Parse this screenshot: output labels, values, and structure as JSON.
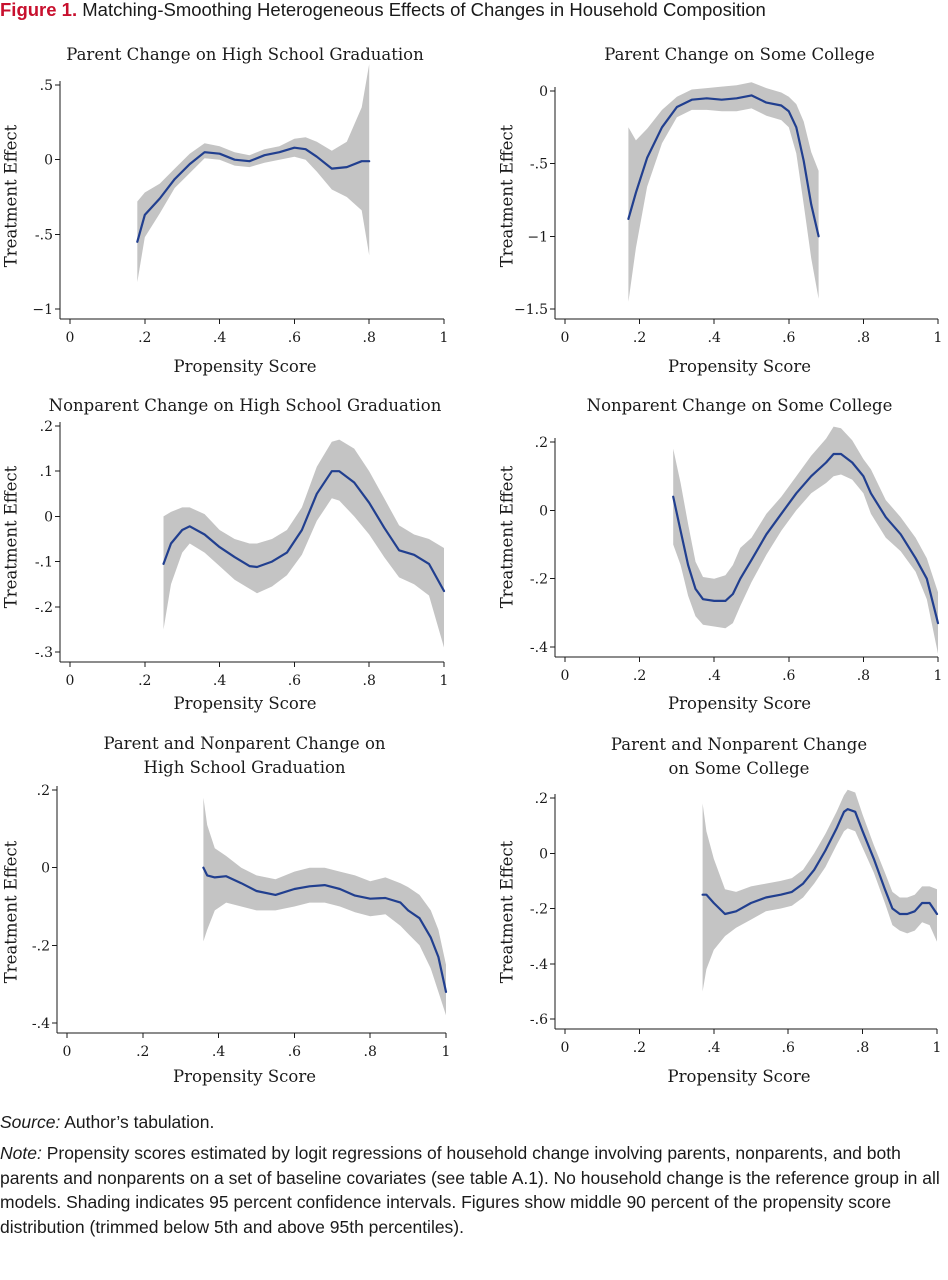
{
  "figure": {
    "label": "Figure 1.",
    "title": "Matching-Smoothing Heterogeneous Effects of Changes in Household Composition"
  },
  "footer": {
    "source_label": "Source:",
    "source_text": "Author’s tabulation.",
    "note_label": "Note:",
    "note_text": "Propensity scores estimated by logit regressions of household change involving parents, nonparents, and both parents and nonparents on a set of baseline covariates (see table A.1). No household change is the reference group in all models. Shading indicates 95 percent confidence intervals. Figures show middle 90 percent of the propensity score distribution (trimmed below 5th and above 95th percentiles)."
  },
  "colors": {
    "line": "#213f8f",
    "band": "#c4c4c4",
    "figure_label": "#c8102e"
  },
  "chart_data": [
    {
      "type": "line",
      "title_lines": [
        "Parent Change on High School Graduation"
      ],
      "xlabel": "Propensity Score",
      "ylabel": "Treatment Effect",
      "xlim": [
        0,
        1
      ],
      "ylim": [
        -1,
        0.5
      ],
      "xticks": [
        0,
        0.2,
        0.4,
        0.6,
        0.8,
        1
      ],
      "xtick_labels": [
        "0",
        ".2",
        ".4",
        ".6",
        ".8",
        "1"
      ],
      "yticks": [
        -1,
        -0.5,
        0,
        0.5
      ],
      "ytick_labels": [
        "−1",
        "-.5",
        "0",
        ".5"
      ],
      "series": [
        {
          "x": [
            0.18,
            0.2,
            0.24,
            0.28,
            0.32,
            0.36,
            0.4,
            0.44,
            0.48,
            0.52,
            0.56,
            0.6,
            0.63,
            0.66,
            0.7,
            0.74,
            0.78,
            0.8
          ],
          "y": [
            -0.55,
            -0.37,
            -0.26,
            -0.13,
            -0.03,
            0.05,
            0.04,
            0.0,
            -0.01,
            0.03,
            0.05,
            0.08,
            0.07,
            0.02,
            -0.06,
            -0.05,
            -0.01,
            -0.01
          ],
          "lower": [
            -0.82,
            -0.52,
            -0.36,
            -0.19,
            -0.09,
            0.01,
            0.0,
            -0.04,
            -0.05,
            -0.02,
            0.0,
            0.02,
            0.0,
            -0.08,
            -0.2,
            -0.25,
            -0.34,
            -0.64
          ],
          "upper": [
            -0.28,
            -0.22,
            -0.16,
            -0.06,
            0.04,
            0.11,
            0.09,
            0.05,
            0.03,
            0.07,
            0.09,
            0.14,
            0.15,
            0.12,
            0.06,
            0.12,
            0.35,
            0.64
          ]
        }
      ]
    },
    {
      "type": "line",
      "title_lines": [
        "Parent Change on Some College"
      ],
      "xlabel": "Propensity Score",
      "ylabel": "Treatment Effect",
      "xlim": [
        0,
        1
      ],
      "ylim": [
        -1.5,
        0
      ],
      "xticks": [
        0,
        0.2,
        0.4,
        0.6,
        0.8,
        1
      ],
      "xtick_labels": [
        "0",
        ".2",
        ".4",
        ".6",
        ".8",
        "1"
      ],
      "yticks": [
        -1.5,
        -1,
        -0.5,
        0
      ],
      "ytick_labels": [
        "−1.5",
        "−1",
        "-.5",
        "0"
      ],
      "series": [
        {
          "x": [
            0.17,
            0.19,
            0.22,
            0.26,
            0.3,
            0.34,
            0.38,
            0.42,
            0.46,
            0.5,
            0.54,
            0.58,
            0.6,
            0.62,
            0.64,
            0.66,
            0.68
          ],
          "y": [
            -0.88,
            -0.7,
            -0.46,
            -0.25,
            -0.11,
            -0.06,
            -0.05,
            -0.06,
            -0.05,
            -0.03,
            -0.08,
            -0.1,
            -0.14,
            -0.25,
            -0.48,
            -0.78,
            -1.0
          ],
          "lower": [
            -1.45,
            -1.08,
            -0.66,
            -0.36,
            -0.18,
            -0.13,
            -0.13,
            -0.14,
            -0.14,
            -0.12,
            -0.17,
            -0.2,
            -0.25,
            -0.43,
            -0.78,
            -1.15,
            -1.43
          ],
          "upper": [
            -0.25,
            -0.34,
            -0.26,
            -0.13,
            -0.04,
            0.01,
            0.02,
            0.03,
            0.04,
            0.06,
            0.02,
            -0.01,
            -0.04,
            -0.09,
            -0.21,
            -0.42,
            -0.55
          ]
        }
      ]
    },
    {
      "type": "line",
      "title_lines": [
        "Nonparent Change on High School Graduation"
      ],
      "xlabel": "Propensity Score",
      "ylabel": "Treatment Effect",
      "xlim": [
        0,
        1
      ],
      "ylim": [
        -0.3,
        0.2
      ],
      "xticks": [
        0,
        0.2,
        0.4,
        0.6,
        0.8,
        1
      ],
      "xtick_labels": [
        "0",
        ".2",
        ".4",
        ".6",
        ".8",
        "1"
      ],
      "yticks": [
        -0.3,
        -0.2,
        -0.1,
        0,
        0.1,
        0.2
      ],
      "ytick_labels": [
        "-.3",
        "-.2",
        "-.1",
        "0",
        ".1",
        ".2"
      ],
      "series": [
        {
          "x": [
            0.25,
            0.27,
            0.3,
            0.32,
            0.36,
            0.4,
            0.44,
            0.48,
            0.5,
            0.54,
            0.58,
            0.62,
            0.66,
            0.7,
            0.72,
            0.76,
            0.8,
            0.84,
            0.88,
            0.92,
            0.96,
            1.0
          ],
          "y": [
            -0.105,
            -0.06,
            -0.03,
            -0.022,
            -0.04,
            -0.068,
            -0.09,
            -0.11,
            -0.112,
            -0.1,
            -0.08,
            -0.03,
            0.05,
            0.1,
            0.1,
            0.075,
            0.03,
            -0.025,
            -0.075,
            -0.085,
            -0.105,
            -0.165
          ],
          "lower": [
            -0.25,
            -0.15,
            -0.08,
            -0.06,
            -0.08,
            -0.11,
            -0.14,
            -0.16,
            -0.17,
            -0.155,
            -0.13,
            -0.085,
            -0.01,
            0.04,
            0.035,
            0.0,
            -0.04,
            -0.09,
            -0.135,
            -0.15,
            -0.175,
            -0.29
          ],
          "upper": [
            0.0,
            0.01,
            0.02,
            0.02,
            0.005,
            -0.03,
            -0.05,
            -0.06,
            -0.06,
            -0.05,
            -0.03,
            0.02,
            0.11,
            0.165,
            0.17,
            0.15,
            0.1,
            0.04,
            -0.02,
            -0.04,
            -0.05,
            -0.07
          ]
        }
      ]
    },
    {
      "type": "line",
      "title_lines": [
        "Nonparent Change on Some College"
      ],
      "xlabel": "Propensity Score",
      "ylabel": "Treatment Effect",
      "xlim": [
        0,
        1
      ],
      "ylim": [
        -0.4,
        0.2
      ],
      "xticks": [
        0,
        0.2,
        0.4,
        0.6,
        0.8,
        1
      ],
      "xtick_labels": [
        "0",
        ".2",
        ".4",
        ".6",
        ".8",
        "1"
      ],
      "yticks": [
        -0.4,
        -0.2,
        0,
        0.2
      ],
      "ytick_labels": [
        "-.4",
        "-.2",
        "0",
        ".2"
      ],
      "series": [
        {
          "x": [
            0.29,
            0.31,
            0.33,
            0.35,
            0.37,
            0.4,
            0.43,
            0.45,
            0.47,
            0.5,
            0.54,
            0.58,
            0.62,
            0.66,
            0.7,
            0.72,
            0.74,
            0.77,
            0.8,
            0.82,
            0.86,
            0.9,
            0.94,
            0.97,
            1.0
          ],
          "y": [
            0.04,
            -0.06,
            -0.16,
            -0.23,
            -0.26,
            -0.265,
            -0.265,
            -0.245,
            -0.2,
            -0.145,
            -0.07,
            -0.01,
            0.05,
            0.1,
            0.14,
            0.165,
            0.165,
            0.14,
            0.1,
            0.05,
            -0.02,
            -0.07,
            -0.14,
            -0.2,
            -0.33
          ],
          "lower": [
            -0.1,
            -0.16,
            -0.25,
            -0.31,
            -0.335,
            -0.34,
            -0.345,
            -0.33,
            -0.28,
            -0.21,
            -0.13,
            -0.06,
            0.0,
            0.05,
            0.08,
            0.1,
            0.105,
            0.09,
            0.05,
            -0.01,
            -0.08,
            -0.12,
            -0.18,
            -0.26,
            -0.42
          ],
          "upper": [
            0.18,
            0.08,
            -0.04,
            -0.15,
            -0.195,
            -0.2,
            -0.19,
            -0.16,
            -0.11,
            -0.08,
            -0.01,
            0.04,
            0.1,
            0.16,
            0.21,
            0.245,
            0.24,
            0.205,
            0.15,
            0.12,
            0.03,
            -0.02,
            -0.08,
            -0.14,
            -0.24
          ]
        }
      ]
    },
    {
      "type": "line",
      "title_lines": [
        "Parent and Nonparent Change on",
        "High School Graduation"
      ],
      "xlabel": "Propensity Score",
      "ylabel": "Treatment Effect",
      "xlim": [
        0,
        1
      ],
      "ylim": [
        -0.4,
        0.2
      ],
      "xticks": [
        0,
        0.2,
        0.4,
        0.6,
        0.8,
        1
      ],
      "xtick_labels": [
        "0",
        ".2",
        ".4",
        ".6",
        ".8",
        "1"
      ],
      "yticks": [
        -0.4,
        -0.2,
        0,
        0.2
      ],
      "ytick_labels": [
        "-.4",
        "-.2",
        "0",
        ".2"
      ],
      "series": [
        {
          "x": [
            0.36,
            0.37,
            0.39,
            0.42,
            0.46,
            0.5,
            0.55,
            0.6,
            0.64,
            0.68,
            0.72,
            0.76,
            0.8,
            0.84,
            0.88,
            0.9,
            0.93,
            0.96,
            0.98,
            1.0
          ],
          "y": [
            0.0,
            -0.02,
            -0.025,
            -0.022,
            -0.04,
            -0.06,
            -0.07,
            -0.055,
            -0.048,
            -0.045,
            -0.055,
            -0.072,
            -0.08,
            -0.078,
            -0.09,
            -0.11,
            -0.13,
            -0.18,
            -0.23,
            -0.32
          ],
          "lower": [
            -0.19,
            -0.16,
            -0.11,
            -0.09,
            -0.1,
            -0.11,
            -0.11,
            -0.1,
            -0.09,
            -0.09,
            -0.1,
            -0.115,
            -0.125,
            -0.12,
            -0.15,
            -0.17,
            -0.2,
            -0.26,
            -0.32,
            -0.38
          ],
          "upper": [
            0.18,
            0.11,
            0.05,
            0.03,
            0.0,
            -0.02,
            -0.03,
            -0.01,
            0.0,
            0.0,
            -0.01,
            -0.02,
            -0.035,
            -0.025,
            -0.04,
            -0.05,
            -0.07,
            -0.11,
            -0.16,
            -0.25
          ]
        }
      ]
    },
    {
      "type": "line",
      "title_lines": [
        "Parent and Nonparent Change",
        "on Some College"
      ],
      "xlabel": "Propensity Score",
      "ylabel": "Treatment Effect",
      "xlim": [
        0,
        1
      ],
      "ylim": [
        -0.6,
        0.2
      ],
      "xticks": [
        0,
        0.2,
        0.4,
        0.6,
        0.8,
        1
      ],
      "xtick_labels": [
        "0",
        ".2",
        ".4",
        ".6",
        ".8",
        "1"
      ],
      "yticks": [
        -0.6,
        -0.4,
        -0.2,
        0,
        0.2
      ],
      "ytick_labels": [
        "-.6",
        "-.4",
        "-.2",
        "0",
        ".2"
      ],
      "series": [
        {
          "x": [
            0.37,
            0.38,
            0.4,
            0.43,
            0.46,
            0.5,
            0.54,
            0.58,
            0.61,
            0.64,
            0.67,
            0.7,
            0.73,
            0.75,
            0.76,
            0.78,
            0.8,
            0.83,
            0.86,
            0.88,
            0.9,
            0.92,
            0.94,
            0.96,
            0.98,
            1.0
          ],
          "y": [
            -0.15,
            -0.15,
            -0.18,
            -0.22,
            -0.21,
            -0.18,
            -0.16,
            -0.15,
            -0.14,
            -0.11,
            -0.06,
            0.01,
            0.09,
            0.15,
            0.16,
            0.15,
            0.08,
            -0.02,
            -0.13,
            -0.2,
            -0.22,
            -0.22,
            -0.21,
            -0.18,
            -0.18,
            -0.22
          ],
          "lower": [
            -0.5,
            -0.42,
            -0.35,
            -0.3,
            -0.27,
            -0.24,
            -0.21,
            -0.2,
            -0.19,
            -0.16,
            -0.11,
            -0.05,
            0.03,
            0.08,
            0.09,
            0.08,
            0.02,
            -0.07,
            -0.18,
            -0.26,
            -0.28,
            -0.29,
            -0.28,
            -0.25,
            -0.26,
            -0.32
          ],
          "upper": [
            0.18,
            0.08,
            -0.02,
            -0.13,
            -0.14,
            -0.12,
            -0.11,
            -0.1,
            -0.09,
            -0.06,
            0.0,
            0.07,
            0.15,
            0.21,
            0.23,
            0.22,
            0.14,
            0.03,
            -0.07,
            -0.14,
            -0.16,
            -0.16,
            -0.15,
            -0.12,
            -0.12,
            -0.13
          ]
        }
      ]
    }
  ]
}
